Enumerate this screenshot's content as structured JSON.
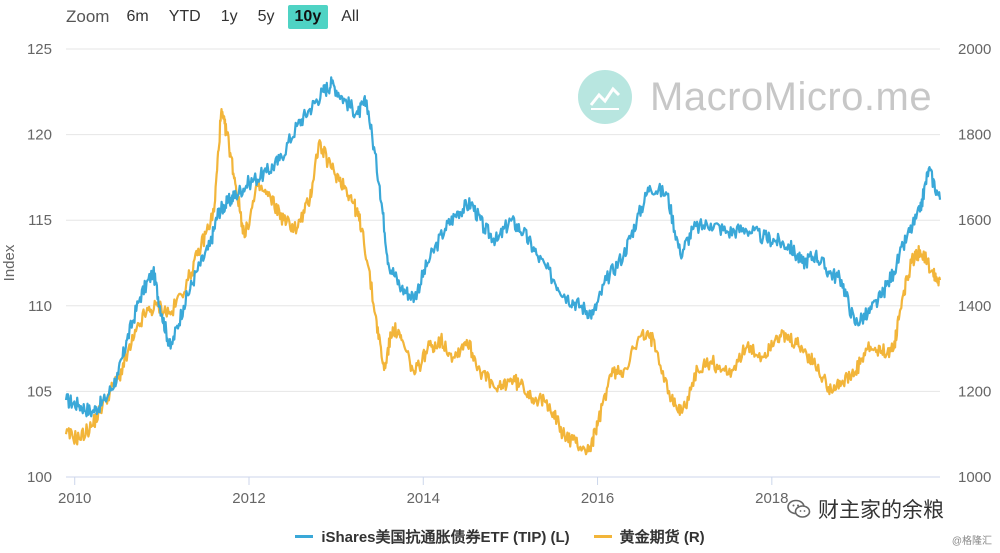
{
  "toolbar": {
    "zoom_label": "Zoom",
    "buttons": [
      "6m",
      "YTD",
      "1y",
      "5y",
      "10y",
      "All"
    ],
    "active": "10y"
  },
  "watermark": {
    "text": "MacroMicro.me"
  },
  "wechat": {
    "text": "财主家的余粮"
  },
  "credit": {
    "text": "@格隆汇"
  },
  "colors": {
    "tip": "#3aa8d8",
    "gold": "#f2b53a",
    "accent": "#4fd3c4",
    "grid": "#e6e6e6"
  },
  "chart_data": {
    "type": "line",
    "xlabel": "",
    "ylabel_left": "Index",
    "ylabel_right": "",
    "x_ticks": [
      "2010",
      "2012",
      "2014",
      "2016",
      "2018"
    ],
    "xlim": [
      2009.9,
      2019.93
    ],
    "ylim_left": [
      100,
      125
    ],
    "yticks_left": [
      100,
      105,
      110,
      115,
      120,
      125
    ],
    "ylim_right": [
      1000,
      2000
    ],
    "yticks_right": [
      1000,
      1200,
      1400,
      1600,
      1800,
      2000
    ],
    "grid": "horizontal",
    "legend_position": "bottom-center",
    "series": [
      {
        "name": "iShares美国抗通胀债券ETF (TIP) (L)",
        "axis": "left",
        "x": [
          2009.9,
          2010.05,
          2010.2,
          2010.35,
          2010.5,
          2010.6,
          2010.75,
          2010.9,
          2011.0,
          2011.1,
          2011.25,
          2011.4,
          2011.55,
          2011.65,
          2011.75,
          2011.85,
          2012.0,
          2012.2,
          2012.35,
          2012.55,
          2012.7,
          2012.85,
          2012.95,
          2013.1,
          2013.25,
          2013.35,
          2013.5,
          2013.6,
          2013.75,
          2013.9,
          2014.05,
          2014.25,
          2014.4,
          2014.55,
          2014.7,
          2014.85,
          2015.0,
          2015.15,
          2015.3,
          2015.5,
          2015.65,
          2015.8,
          2015.95,
          2016.1,
          2016.3,
          2016.45,
          2016.6,
          2016.8,
          2016.95,
          2017.1,
          2017.3,
          2017.5,
          2017.7,
          2017.9,
          2018.05,
          2018.2,
          2018.35,
          2018.5,
          2018.65,
          2018.8,
          2018.95,
          2019.1,
          2019.25,
          2019.4,
          2019.55,
          2019.7,
          2019.8,
          2019.93
        ],
        "values": [
          104.5,
          104.2,
          103.8,
          104.5,
          106.0,
          108.0,
          110.5,
          112.0,
          109.5,
          107.5,
          110.0,
          112.0,
          113.5,
          115.5,
          116.0,
          116.5,
          117.2,
          117.8,
          118.5,
          120.5,
          121.5,
          122.5,
          123.0,
          122.0,
          121.2,
          122.0,
          117.0,
          112.5,
          111.0,
          110.5,
          112.5,
          114.5,
          115.5,
          116.0,
          114.5,
          113.8,
          115.0,
          114.3,
          113.0,
          111.5,
          110.5,
          110.0,
          109.5,
          111.5,
          113.0,
          115.0,
          117.0,
          116.5,
          113.0,
          114.5,
          114.8,
          114.3,
          114.5,
          114.0,
          113.8,
          113.5,
          112.5,
          113.0,
          112.0,
          111.5,
          109.0,
          109.5,
          110.5,
          112.0,
          114.0,
          115.5,
          118.0,
          116.2
        ]
      },
      {
        "name": "黄金期货 (R)",
        "axis": "right",
        "x": [
          2009.9,
          2010.05,
          2010.2,
          2010.35,
          2010.5,
          2010.65,
          2010.8,
          2010.95,
          2011.1,
          2011.3,
          2011.45,
          2011.6,
          2011.68,
          2011.75,
          2011.85,
          2011.95,
          2012.1,
          2012.25,
          2012.4,
          2012.55,
          2012.7,
          2012.8,
          2012.95,
          2013.1,
          2013.2,
          2013.3,
          2013.45,
          2013.55,
          2013.65,
          2013.75,
          2013.9,
          2014.05,
          2014.2,
          2014.35,
          2014.5,
          2014.65,
          2014.85,
          2015.0,
          2015.15,
          2015.3,
          2015.45,
          2015.6,
          2015.75,
          2015.9,
          2016.0,
          2016.15,
          2016.3,
          2016.5,
          2016.65,
          2016.85,
          2016.97,
          2017.15,
          2017.3,
          2017.5,
          2017.7,
          2017.9,
          2018.05,
          2018.2,
          2018.35,
          2018.5,
          2018.65,
          2018.8,
          2018.95,
          2019.1,
          2019.25,
          2019.4,
          2019.5,
          2019.6,
          2019.7,
          2019.85,
          2019.93
        ],
        "values": [
          1100,
          1090,
          1120,
          1180,
          1230,
          1310,
          1380,
          1400,
          1380,
          1460,
          1540,
          1620,
          1850,
          1800,
          1680,
          1560,
          1680,
          1650,
          1600,
          1580,
          1650,
          1780,
          1720,
          1680,
          1640,
          1580,
          1380,
          1250,
          1350,
          1320,
          1240,
          1300,
          1320,
          1280,
          1320,
          1250,
          1200,
          1230,
          1210,
          1180,
          1170,
          1100,
          1080,
          1060,
          1120,
          1240,
          1250,
          1330,
          1320,
          1180,
          1150,
          1250,
          1270,
          1240,
          1300,
          1280,
          1330,
          1320,
          1300,
          1260,
          1210,
          1220,
          1240,
          1300,
          1290,
          1300,
          1420,
          1500,
          1530,
          1480,
          1460
        ]
      }
    ]
  }
}
